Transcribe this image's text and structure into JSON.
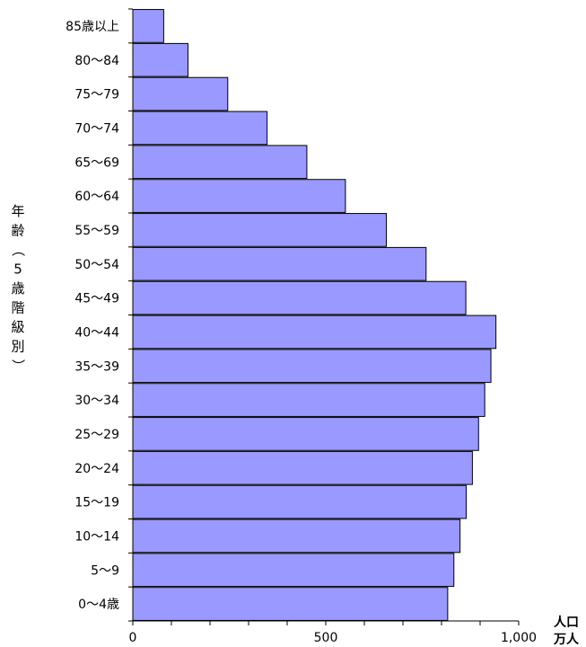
{
  "chart_data": {
    "type": "bar",
    "orientation": "horizontal",
    "categories": [
      "85歳以上",
      "80～84",
      "75～79",
      "70～74",
      "65～69",
      "60～64",
      "55～59",
      "50～54",
      "45～49",
      "40～44",
      "35～39",
      "30～34",
      "25～29",
      "20～24",
      "15～19",
      "10～14",
      "5～9",
      "0～4歳"
    ],
    "values": [
      80,
      143,
      246,
      348,
      451,
      551,
      657,
      760,
      863,
      941,
      928,
      912,
      896,
      880,
      864,
      848,
      832,
      816
    ],
    "ylabel": "年齢（5歳階級別）",
    "unit": [
      "人口",
      "万人"
    ],
    "xlim": [
      0,
      1000
    ],
    "xticks": [
      0,
      500,
      1000
    ],
    "xtick_labels": [
      "0",
      "500",
      "1,000"
    ],
    "bar_color": "#9999ff",
    "bar_edge_color": "#000000",
    "grid": false,
    "legend": "none"
  }
}
